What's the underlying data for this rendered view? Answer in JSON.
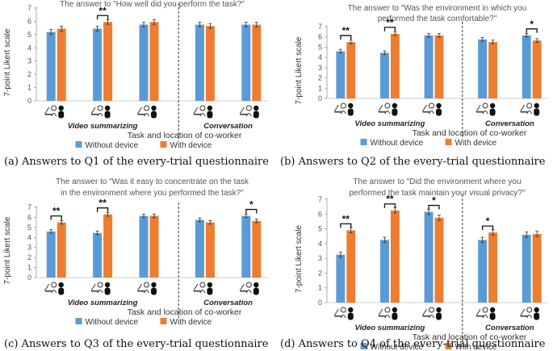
{
  "colors": {
    "without": "#5b9bd5",
    "with": "#ed7d31"
  },
  "shared": {
    "ylabel": "7-point Likert scale",
    "xlabel": "Task and location of co-worker",
    "legend": [
      "Without device",
      "With device"
    ],
    "group_labels": [
      "Video summarizing",
      "Conversation"
    ],
    "conditions": [
      "far",
      "near",
      "very near",
      "far",
      "near"
    ],
    "icons": [
      "worker-laptop-icon",
      "coworker-silhouette-icon"
    ]
  },
  "chart_data": [
    {
      "type": "bar",
      "panel": "a",
      "title_lines": [
        "The answer to \"How well did you perform the task?\""
      ],
      "caption": "(a) Answers to Q1 of the every-trial questionnaire",
      "ylim": [
        0,
        7
      ],
      "yticks": [
        0,
        1,
        2,
        3,
        4,
        5,
        6,
        7
      ],
      "series": [
        {
          "name": "Without device",
          "values": [
            5.2,
            5.45,
            5.75,
            5.75,
            5.75
          ]
        },
        {
          "name": "With device",
          "values": [
            5.45,
            5.95,
            5.95,
            5.65,
            5.75
          ]
        }
      ],
      "significance": [
        {
          "index": 1,
          "label": "**"
        }
      ]
    },
    {
      "type": "bar",
      "panel": "b",
      "title_lines": [
        "The answer to \"Was the environment in which you",
        "performed the task comfortable?\""
      ],
      "caption": "(b) Answers to Q2 of the every-trial questionnaire",
      "ylim": [
        0,
        7
      ],
      "yticks": [
        0,
        1,
        2,
        3,
        4,
        5,
        6,
        7
      ],
      "series": [
        {
          "name": "Without device",
          "values": [
            4.6,
            4.45,
            6.15,
            5.75,
            6.15
          ]
        },
        {
          "name": "With device",
          "values": [
            5.5,
            6.3,
            6.15,
            5.5,
            5.65
          ]
        }
      ],
      "significance": [
        {
          "index": 0,
          "label": "**"
        },
        {
          "index": 1,
          "label": "**"
        },
        {
          "index": 4,
          "label": "*"
        }
      ]
    },
    {
      "type": "bar",
      "panel": "c",
      "title_lines": [
        "The answer to \"Was it easy to concentrate on the task",
        "in the environment where you performed the task?\""
      ],
      "caption": "(c) Answers to Q3 of the every-trial questionnaire",
      "ylim": [
        0,
        7
      ],
      "yticks": [
        0,
        1,
        2,
        3,
        4,
        5,
        6,
        7
      ],
      "series": [
        {
          "name": "Without device",
          "values": [
            4.6,
            4.45,
            6.15,
            5.75,
            6.15
          ]
        },
        {
          "name": "With device",
          "values": [
            5.5,
            6.3,
            6.15,
            5.5,
            5.65
          ]
        }
      ],
      "significance": [
        {
          "index": 0,
          "label": "**"
        },
        {
          "index": 1,
          "label": "**"
        },
        {
          "index": 4,
          "label": "*"
        }
      ]
    },
    {
      "type": "bar",
      "panel": "d",
      "title_lines": [
        "The answer to \"Did the environment where you",
        "performed the task maintain your visual privacy?\""
      ],
      "caption": "(d) Answers to Q4 of the every-trial questionnaire",
      "ylim": [
        0,
        7
      ],
      "yticks": [
        0,
        1,
        2,
        3,
        4,
        5,
        6,
        7
      ],
      "series": [
        {
          "name": "Without device",
          "values": [
            3.25,
            4.25,
            6.15,
            4.25,
            4.6
          ]
        },
        {
          "name": "With device",
          "values": [
            4.9,
            6.25,
            5.75,
            4.75,
            4.65
          ]
        }
      ],
      "significance": [
        {
          "index": 0,
          "label": "**"
        },
        {
          "index": 1,
          "label": "**"
        },
        {
          "index": 2,
          "label": "*"
        },
        {
          "index": 3,
          "label": "*"
        }
      ]
    }
  ]
}
